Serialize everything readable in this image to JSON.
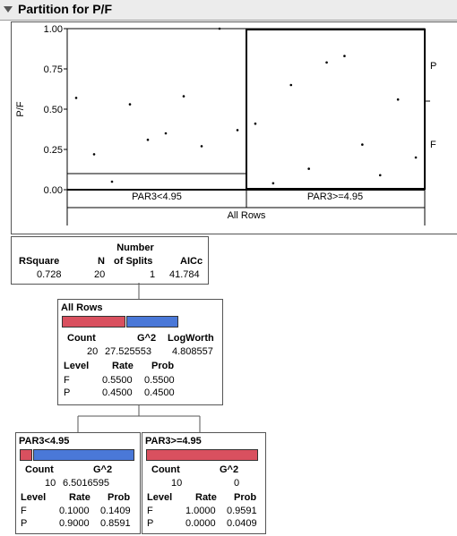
{
  "window": {
    "title": "Partition for P/F"
  },
  "plot": {
    "y_axis_label": "P/F",
    "y_ticks": [
      "1.00",
      "0.75",
      "0.50",
      "0.25",
      "0.00"
    ],
    "right_labels": [
      "P",
      "F"
    ],
    "partitions": [
      "PAR3<4.95",
      "PAR3>=4.95"
    ],
    "root_label": "All Rows"
  },
  "summary": {
    "headers": [
      "RSquare",
      "N",
      "Number",
      "of Splits",
      "AICc"
    ],
    "values": [
      "0.728",
      "20",
      "1",
      "41.784"
    ]
  },
  "root_node": {
    "title": "All Rows",
    "count_label": "Count",
    "g2_label": "G^2",
    "logworth_label": "LogWorth",
    "count": "20",
    "g2": "27.525553",
    "logworth": "4.808557",
    "col_level": "Level",
    "col_rate": "Rate",
    "col_prob": "Prob",
    "rows": [
      {
        "level": "F",
        "rate": "0.5500",
        "prob": "0.5500"
      },
      {
        "level": "P",
        "rate": "0.4500",
        "prob": "0.4500"
      }
    ],
    "f_fraction": 0.55
  },
  "left_node": {
    "title": "PAR3<4.95",
    "count_label": "Count",
    "g2_label": "G^2",
    "count": "10",
    "g2": "6.5016595",
    "col_level": "Level",
    "col_rate": "Rate",
    "col_prob": "Prob",
    "rows": [
      {
        "level": "F",
        "rate": "0.1000",
        "prob": "0.1409"
      },
      {
        "level": "P",
        "rate": "0.9000",
        "prob": "0.8591"
      }
    ],
    "f_fraction": 0.1
  },
  "right_node": {
    "title": "PAR3>=4.95",
    "count_label": "Count",
    "g2_label": "G^2",
    "count": "10",
    "g2": "0",
    "col_level": "Level",
    "col_rate": "Rate",
    "col_prob": "Prob",
    "rows": [
      {
        "level": "F",
        "rate": "1.0000",
        "prob": "0.9591"
      },
      {
        "level": "P",
        "rate": "0.0000",
        "prob": "0.0409"
      }
    ],
    "f_fraction": 1.0
  },
  "colors": {
    "f_bar": "#d9505f",
    "p_bar": "#4a78d8"
  },
  "chart_data": {
    "type": "scatter",
    "ylabel": "P/F",
    "ylim": [
      0,
      1
    ],
    "split_level": 0.1,
    "groups": [
      {
        "name": "PAR3<4.95",
        "y": [
          0.57,
          0.22,
          0.05,
          0.53,
          0.31,
          0.35,
          0.58,
          0.27,
          1.0,
          0.37
        ]
      },
      {
        "name": "PAR3>=4.95",
        "y": [
          0.41,
          0.04,
          0.65,
          0.13,
          0.79,
          0.83,
          0.28,
          0.09,
          0.56,
          0.2
        ]
      }
    ]
  }
}
